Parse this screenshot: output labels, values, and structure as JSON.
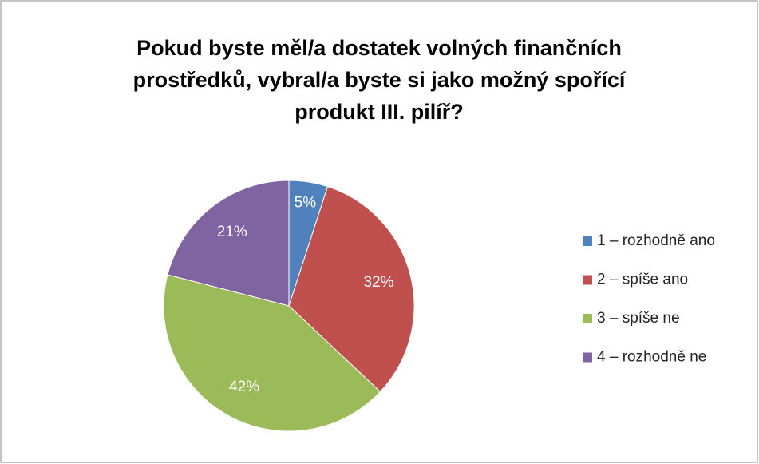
{
  "chart_data": {
    "type": "pie",
    "title": [
      "Pokud byste měl/a dostatek volných finančních",
      "prostředků, vybral/a byste si jako možný spořící",
      "produkt III. pilíř?"
    ],
    "categories": [
      "1 – rozhodně ano",
      "2 – spíše ano",
      "3 – spíše ne",
      "4 – rozhodně ne"
    ],
    "values": [
      5,
      32,
      42,
      21
    ],
    "value_labels": [
      "5%",
      "32%",
      "42%",
      "21%"
    ],
    "colors": [
      "#4f81bd",
      "#c0504d",
      "#9bbb59",
      "#8064a2"
    ],
    "legend": "right"
  }
}
